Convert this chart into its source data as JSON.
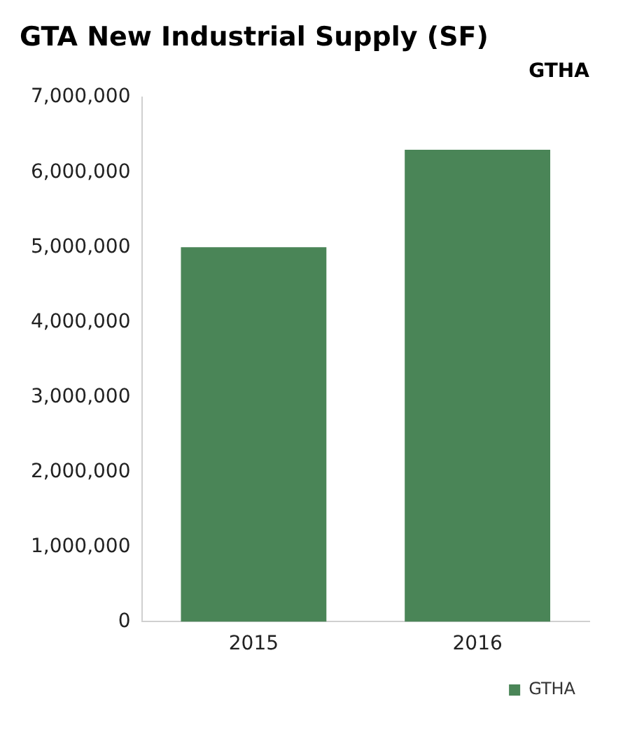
{
  "chart_data": {
    "type": "bar",
    "title": "GTA New Industrial Supply (SF)",
    "subtitle": "GTHA",
    "categories": [
      "2015",
      "2016"
    ],
    "series": [
      {
        "name": "GTHA",
        "color": "#4a8557",
        "values": [
          5000000,
          6300000
        ]
      }
    ],
    "ylim": [
      0,
      7000000
    ],
    "yticks": [
      {
        "value": 0,
        "label": "0"
      },
      {
        "value": 1000000,
        "label": "1,000,000"
      },
      {
        "value": 2000000,
        "label": "2,000,000"
      },
      {
        "value": 3000000,
        "label": "3,000,000"
      },
      {
        "value": 4000000,
        "label": "4,000,000"
      },
      {
        "value": 5000000,
        "label": "5,000,000"
      },
      {
        "value": 6000000,
        "label": "6,000,000"
      },
      {
        "value": 7000000,
        "label": "7,000,000"
      }
    ],
    "grid": false,
    "legend": "bottom right"
  }
}
